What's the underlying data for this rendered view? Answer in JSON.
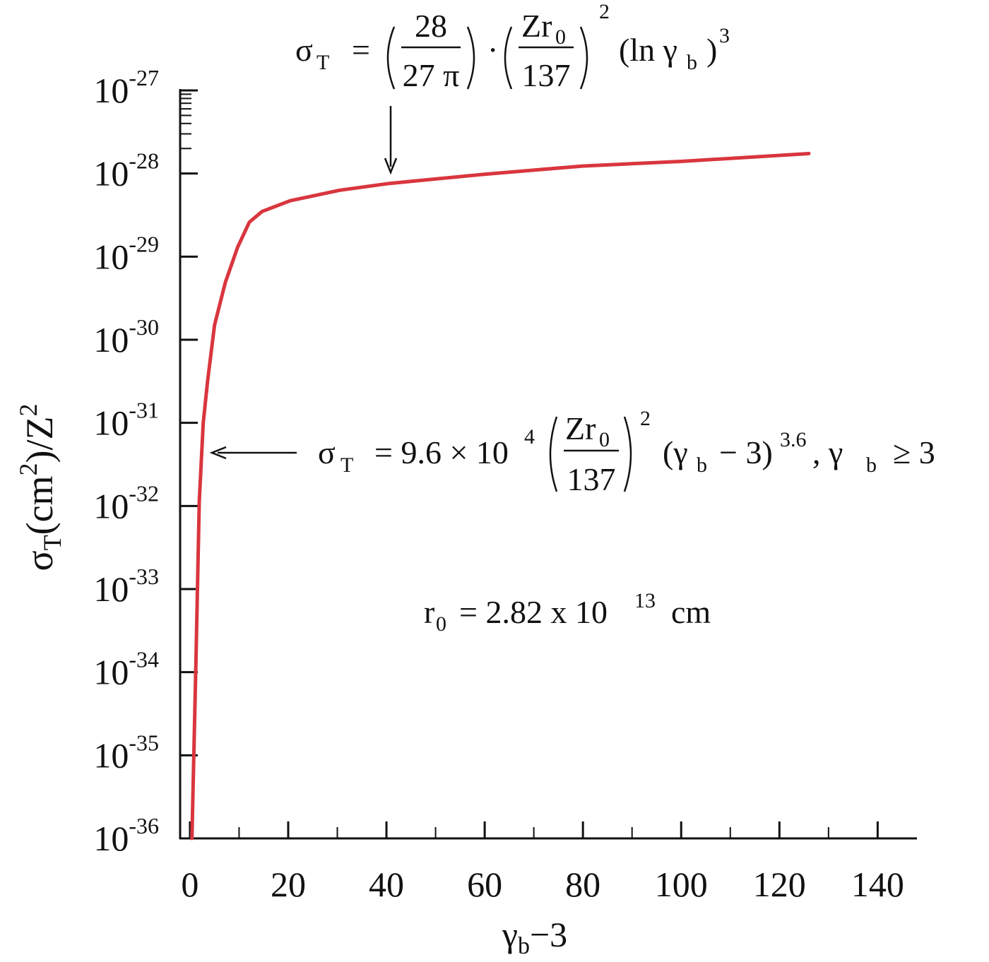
{
  "chart_data": {
    "type": "line",
    "color": "#d9363e",
    "log_y": true,
    "x": [
      0.4,
      1.2,
      1.9,
      2.7,
      3.6,
      5.0,
      7.2,
      9.7,
      12.1,
      14.7,
      20.4,
      30.5,
      40.6,
      59.9,
      79.9,
      100,
      126
    ],
    "values": [
      1e-36,
      1.26e-34,
      1.15e-32,
      1e-31,
      3.2e-31,
      1.5e-30,
      4.9e-30,
      1.3e-29,
      2.6e-29,
      3.5e-29,
      4.7e-29,
      6.3e-29,
      7.6e-29,
      9.8e-29,
      1.23e-28,
      1.4e-28,
      1.74e-28
    ],
    "xlim": [
      -2,
      148
    ],
    "xticks": [
      0,
      20,
      40,
      60,
      80,
      100,
      120,
      140
    ],
    "ylim": [
      1e-36,
      1e-27
    ],
    "yticks": [
      {
        "value": 1e-36,
        "label": "10-36"
      },
      {
        "value": 1e-35,
        "label": "10-35"
      },
      {
        "value": 1e-34,
        "label": "10-34"
      },
      {
        "value": 1e-33,
        "label": "10-33"
      },
      {
        "value": 1e-32,
        "label": "10-32"
      },
      {
        "value": 1e-31,
        "label": "10-31"
      },
      {
        "value": 1e-30,
        "label": "10-30"
      },
      {
        "value": 1e-29,
        "label": "10-29"
      },
      {
        "value": 1e-28,
        "label": "10-28"
      },
      {
        "value": 1e-27,
        "label": "10-27"
      }
    ],
    "xlabel": [
      "γ",
      "b",
      "−3"
    ],
    "ylabel": [
      "σ",
      "T",
      "(cm",
      "2",
      ")/Z",
      "2"
    ],
    "annotations": [
      [
        "σ",
        "T",
        "=",
        "28",
        "27 π",
        "·",
        "Zr",
        "0",
        "137",
        "2",
        "(ln γ",
        "b",
        ")",
        "3"
      ],
      [
        "σ",
        "T",
        "= 9.6 × 10",
        "4",
        "Zr",
        "0",
        "137",
        "2",
        "(γ",
        "b",
        "− 3)",
        "3.6",
        ",  γ",
        "b",
        "≥ 3"
      ],
      [
        "r",
        "0",
        "= 2.82 x 10",
        "13",
        "cm"
      ]
    ]
  }
}
